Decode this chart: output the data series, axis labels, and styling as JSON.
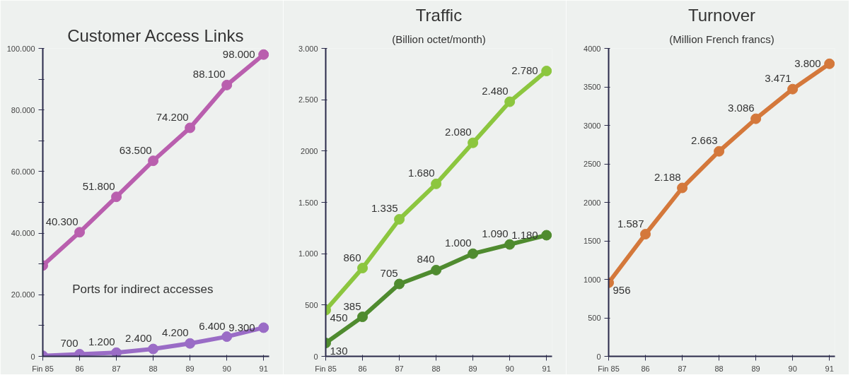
{
  "chart_data": [
    {
      "type": "line",
      "title": "Customer Access Links",
      "categories": [
        "Fin 85",
        "86",
        "87",
        "88",
        "89",
        "90",
        "91"
      ],
      "ylim": [
        0,
        100000
      ],
      "yticks": [
        {
          "value": 0,
          "label": "0"
        },
        {
          "value": 10000,
          "label": null
        },
        {
          "value": 20000,
          "label": "20.000"
        },
        {
          "value": 30000,
          "label": null
        },
        {
          "value": 40000,
          "label": "40.000"
        },
        {
          "value": 50000,
          "label": null
        },
        {
          "value": 60000,
          "label": "60.000"
        },
        {
          "value": 70000,
          "label": null
        },
        {
          "value": 80000,
          "label": "80.000"
        },
        {
          "value": 90000,
          "label": null
        },
        {
          "value": 100000,
          "label": "100.000"
        }
      ],
      "marker": "circle",
      "line_style": "solid",
      "grid": false,
      "series": [
        {
          "color": "#b95fae",
          "values": [
            29500,
            40300,
            51800,
            63500,
            74200,
            88100,
            98000
          ],
          "value_labels": [
            null,
            "40.300",
            "51.800",
            "63.500",
            "74.200",
            "88.100",
            "98.000"
          ]
        },
        {
          "name": "Ports for indirect accesses",
          "color": "#9a6cc6",
          "values": [
            200,
            700,
            1200,
            2400,
            4200,
            6400,
            9300
          ],
          "value_labels": [
            null,
            "700",
            "1.200",
            "2.400",
            "4.200",
            "6.400",
            "9.300"
          ]
        }
      ]
    },
    {
      "type": "line",
      "title": "Traffic",
      "subtitle": "(Billion octet/month)",
      "categories": [
        "Fin 85",
        "86",
        "87",
        "88",
        "89",
        "90",
        "91"
      ],
      "ylim": [
        0,
        3000
      ],
      "yticks": [
        {
          "value": 0,
          "label": "0"
        },
        {
          "value": 500,
          "label": "500"
        },
        {
          "value": 1000,
          "label": "1.000"
        },
        {
          "value": 1500,
          "label": "1.500"
        },
        {
          "value": 2000,
          "label": "2000"
        },
        {
          "value": 2500,
          "label": "2.500"
        },
        {
          "value": 3000,
          "label": "3.000"
        }
      ],
      "marker": "circle",
      "line_style": "solid",
      "grid": false,
      "series": [
        {
          "color": "#8cc63f",
          "values": [
            450,
            860,
            1335,
            1680,
            2080,
            2480,
            2780
          ],
          "value_labels": [
            "450",
            "860",
            "1.335",
            "1.680",
            "2.080",
            "2.480",
            "2.780"
          ]
        },
        {
          "color": "#4f8b2f",
          "values": [
            130,
            385,
            705,
            840,
            1000,
            1090,
            1180
          ],
          "value_labels": [
            "130",
            "385",
            "705",
            "840",
            "1.000",
            "1.090",
            "1.180"
          ]
        }
      ]
    },
    {
      "type": "line",
      "title": "Turnover",
      "subtitle": "(Million French francs)",
      "categories": [
        "Fin 85",
        "86",
        "87",
        "88",
        "89",
        "90",
        "91"
      ],
      "ylim": [
        0,
        4000
      ],
      "yticks": [
        0,
        500,
        1000,
        1500,
        2000,
        2500,
        3000,
        3500,
        4000
      ],
      "marker": "circle",
      "line_style": "solid",
      "grid": false,
      "series": [
        {
          "color": "#d4783b",
          "values": [
            956,
            1587,
            2188,
            2663,
            3086,
            3471,
            3800
          ],
          "value_labels": [
            "956",
            "1.587",
            "2.188",
            "2.663",
            "3.086",
            "3.471",
            "3.800"
          ]
        }
      ]
    }
  ]
}
